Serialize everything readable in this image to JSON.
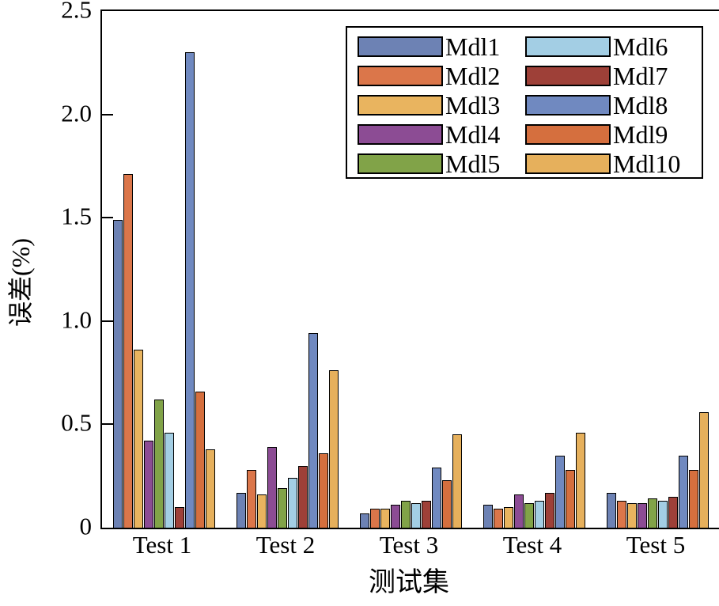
{
  "chart_data": {
    "type": "bar",
    "title": "",
    "xlabel": "测试集",
    "ylabel": "误差(%)",
    "categories": [
      "Test 1",
      "Test 2",
      "Test 3",
      "Test 4",
      "Test 5"
    ],
    "series": [
      {
        "name": "Mdl1",
        "color": "#6d82b4",
        "values": [
          1.49,
          0.17,
          0.07,
          0.11,
          0.17
        ]
      },
      {
        "name": "Mdl2",
        "color": "#db764a",
        "values": [
          1.71,
          0.28,
          0.09,
          0.09,
          0.13
        ]
      },
      {
        "name": "Mdl3",
        "color": "#e9b45f",
        "values": [
          0.86,
          0.16,
          0.09,
          0.1,
          0.12
        ]
      },
      {
        "name": "Mdl4",
        "color": "#8c4c94",
        "values": [
          0.42,
          0.39,
          0.11,
          0.16,
          0.12
        ]
      },
      {
        "name": "Mdl5",
        "color": "#81a348",
        "values": [
          0.62,
          0.19,
          0.13,
          0.12,
          0.14
        ]
      },
      {
        "name": "Mdl6",
        "color": "#a3cee4",
        "values": [
          0.46,
          0.24,
          0.12,
          0.13,
          0.13
        ]
      },
      {
        "name": "Mdl7",
        "color": "#9e4038",
        "values": [
          0.1,
          0.3,
          0.13,
          0.17,
          0.15
        ]
      },
      {
        "name": "Mdl8",
        "color": "#7089c0",
        "values": [
          2.3,
          0.94,
          0.29,
          0.35,
          0.35
        ]
      },
      {
        "name": "Mdl9",
        "color": "#d56f3e",
        "values": [
          0.66,
          0.36,
          0.23,
          0.28,
          0.28
        ]
      },
      {
        "name": "Mdl10",
        "color": "#e6b05c",
        "values": [
          0.38,
          0.76,
          0.45,
          0.46,
          0.56
        ]
      }
    ],
    "ylim": [
      0,
      2.5
    ],
    "yticks": [
      0,
      0.5,
      1.0,
      1.5,
      2.0,
      2.5
    ],
    "ytick_labels": [
      "0",
      "0.5",
      "1.0",
      "1.5",
      "2.0",
      "2.5"
    ],
    "grid": false,
    "legend_position": "upper-right-inside",
    "bar_border_color": "#000000",
    "axis_color": "#000000"
  }
}
